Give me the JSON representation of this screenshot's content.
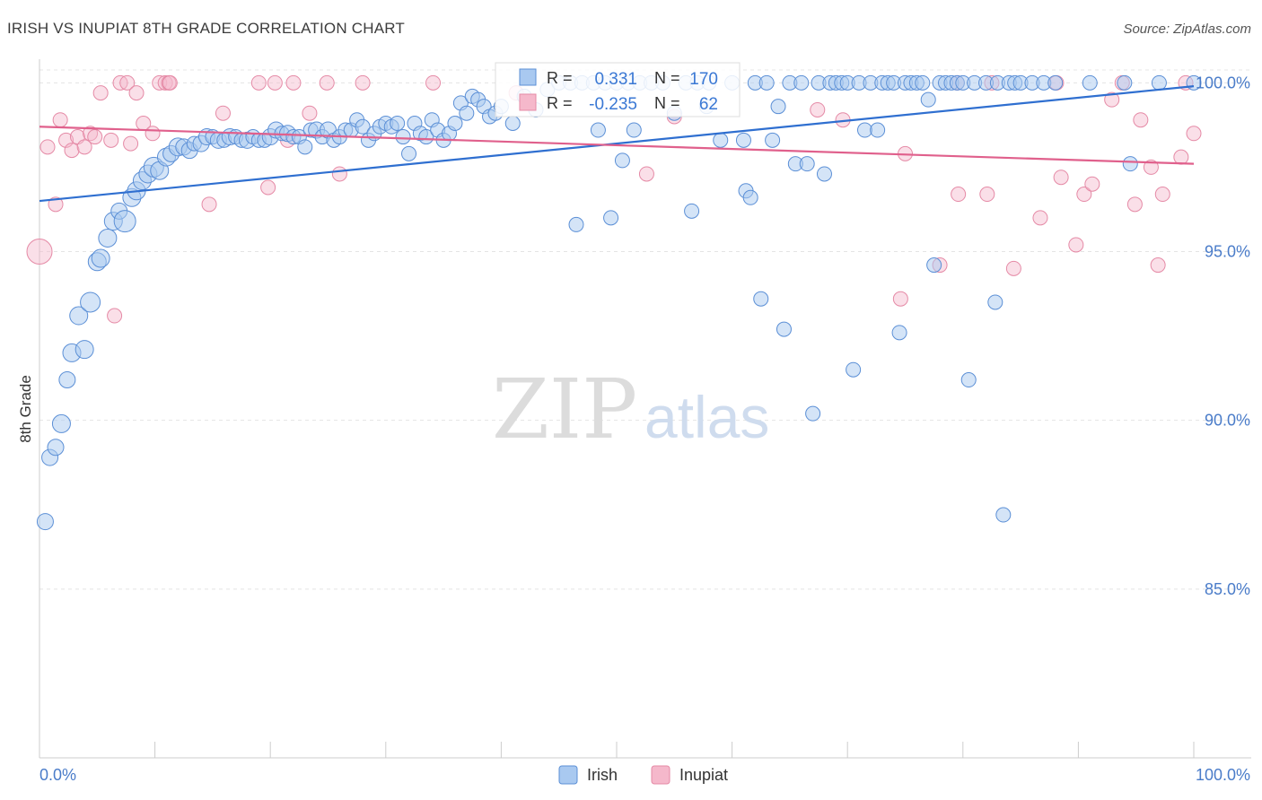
{
  "header": {
    "title": "IRISH VS INUPIAT 8TH GRADE CORRELATION CHART",
    "source": "Source: ZipAtlas.com"
  },
  "watermark": {
    "zip": "ZIP",
    "atlas": "atlas"
  },
  "stats_box": {
    "rows": [
      {
        "r_label": "R =",
        "r_value": "0.331",
        "n_label": "N =",
        "n_value": "170"
      },
      {
        "r_label": "R =",
        "r_value": "-0.235",
        "n_label": "N =",
        "n_value": "62"
      }
    ]
  },
  "legend": {
    "items": [
      {
        "label": "Irish",
        "color": "#a9c9f0"
      },
      {
        "label": "Inupiat",
        "color": "#f5b8cb"
      }
    ]
  },
  "chart_data": {
    "type": "scatter",
    "ylabel": "8th Grade",
    "xlim": [
      0,
      100
    ],
    "ylim": [
      80.0,
      100.7
    ],
    "x_tick_labels": [
      {
        "value": 0,
        "label": "0.0%"
      },
      {
        "value": 100,
        "label": "100.0%"
      }
    ],
    "y_tick_labels": [
      {
        "value": 100,
        "label": "100.0%"
      },
      {
        "value": 95,
        "label": "95.0%"
      },
      {
        "value": 90,
        "label": "90.0%"
      },
      {
        "value": 85,
        "label": "85.0%"
      }
    ],
    "grid": true,
    "legend_position": "bottom-center",
    "colors": {
      "irish_fill": "#a9c9f0",
      "irish_stroke": "#5b8fd6",
      "irish_line": "#2f6fd0",
      "inupiat_fill": "#f5b8cb",
      "inupiat_stroke": "#e58aa6",
      "inupiat_line": "#e0608c",
      "tick_text": "#4a7cc9"
    },
    "series": [
      {
        "name": "Irish",
        "trendline": {
          "x": [
            0,
            100
          ],
          "y": [
            96.5,
            99.9
          ]
        },
        "points": [
          [
            0.5,
            87.0,
            9
          ],
          [
            0.9,
            88.9,
            9
          ],
          [
            1.4,
            89.2,
            9
          ],
          [
            1.9,
            89.9,
            10
          ],
          [
            2.4,
            91.2,
            9
          ],
          [
            2.8,
            92.0,
            10
          ],
          [
            3.4,
            93.1,
            10
          ],
          [
            3.9,
            92.1,
            10
          ],
          [
            4.4,
            93.5,
            11
          ],
          [
            5.0,
            94.7,
            10
          ],
          [
            5.3,
            94.8,
            10
          ],
          [
            5.9,
            95.4,
            10
          ],
          [
            6.4,
            95.9,
            10
          ],
          [
            6.9,
            96.2,
            9
          ],
          [
            7.4,
            95.9,
            12
          ],
          [
            8.0,
            96.6,
            10
          ],
          [
            8.4,
            96.8,
            10
          ],
          [
            8.9,
            97.1,
            10
          ],
          [
            9.4,
            97.3,
            10
          ],
          [
            9.9,
            97.5,
            11
          ],
          [
            10.4,
            97.4,
            10
          ],
          [
            11.0,
            97.8,
            10
          ],
          [
            11.4,
            97.9,
            9
          ],
          [
            12.0,
            98.1,
            10
          ],
          [
            12.5,
            98.1,
            9
          ],
          [
            13.0,
            98.0,
            9
          ],
          [
            13.4,
            98.2,
            8
          ],
          [
            14.0,
            98.2,
            9
          ],
          [
            14.5,
            98.4,
            9
          ],
          [
            15.0,
            98.4,
            8
          ],
          [
            15.5,
            98.3,
            9
          ],
          [
            16.0,
            98.3,
            8
          ],
          [
            16.5,
            98.4,
            9
          ],
          [
            17.0,
            98.4,
            8
          ],
          [
            17.5,
            98.3,
            8
          ],
          [
            18.0,
            98.3,
            9
          ],
          [
            18.5,
            98.4,
            8
          ],
          [
            19.0,
            98.3,
            8
          ],
          [
            19.5,
            98.3,
            8
          ],
          [
            20.0,
            98.4,
            9
          ],
          [
            20.5,
            98.6,
            9
          ],
          [
            21.0,
            98.5,
            8
          ],
          [
            21.5,
            98.5,
            9
          ],
          [
            22.0,
            98.4,
            8
          ],
          [
            22.5,
            98.4,
            8
          ],
          [
            23.0,
            98.1,
            8
          ],
          [
            23.5,
            98.6,
            8
          ],
          [
            24.0,
            98.6,
            9
          ],
          [
            24.5,
            98.4,
            8
          ],
          [
            25.0,
            98.6,
            9
          ],
          [
            25.5,
            98.3,
            8
          ],
          [
            26.0,
            98.4,
            8
          ],
          [
            26.5,
            98.6,
            8
          ],
          [
            27.0,
            98.6,
            8
          ],
          [
            27.5,
            98.9,
            8
          ],
          [
            28.0,
            98.7,
            8
          ],
          [
            28.5,
            98.3,
            8
          ],
          [
            29.0,
            98.5,
            8
          ],
          [
            29.5,
            98.7,
            8
          ],
          [
            30.0,
            98.8,
            8
          ],
          [
            30.5,
            98.7,
            8
          ],
          [
            31.0,
            98.8,
            8
          ],
          [
            31.5,
            98.4,
            8
          ],
          [
            32.0,
            97.9,
            8
          ],
          [
            32.5,
            98.8,
            8
          ],
          [
            33.0,
            98.5,
            8
          ],
          [
            33.5,
            98.4,
            8
          ],
          [
            34.0,
            98.9,
            8
          ],
          [
            34.5,
            98.6,
            8
          ],
          [
            35.0,
            98.3,
            8
          ],
          [
            35.5,
            98.5,
            8
          ],
          [
            36.0,
            98.8,
            8
          ],
          [
            36.5,
            99.4,
            8
          ],
          [
            37.0,
            99.1,
            8
          ],
          [
            37.5,
            99.6,
            8
          ],
          [
            38.0,
            99.5,
            8
          ],
          [
            38.5,
            99.3,
            8
          ],
          [
            39.0,
            99.0,
            8
          ],
          [
            39.5,
            99.1,
            8
          ],
          [
            40.0,
            99.3,
            8
          ],
          [
            41.0,
            98.8,
            8
          ],
          [
            42.0,
            99.6,
            8
          ],
          [
            43.0,
            99.2,
            8
          ],
          [
            44.0,
            99.8,
            8
          ],
          [
            45.0,
            100.0,
            8
          ],
          [
            46.0,
            100.0,
            8
          ],
          [
            47.0,
            100.0,
            8
          ],
          [
            48.0,
            100.0,
            8
          ],
          [
            48.4,
            98.6,
            8
          ],
          [
            49.0,
            100.0,
            8
          ],
          [
            50.0,
            100.0,
            8
          ],
          [
            50.5,
            97.7,
            8
          ],
          [
            51.0,
            100.0,
            8
          ],
          [
            51.5,
            98.6,
            8
          ],
          [
            52.0,
            100.0,
            8
          ],
          [
            53.0,
            100.0,
            8
          ],
          [
            54.0,
            100.0,
            8
          ],
          [
            55.0,
            99.1,
            8
          ],
          [
            56.0,
            100.0,
            8
          ],
          [
            57.0,
            100.0,
            8
          ],
          [
            57.8,
            99.3,
            8
          ],
          [
            58.0,
            100.0,
            8
          ],
          [
            59.0,
            98.3,
            8
          ],
          [
            60.0,
            100.0,
            8
          ],
          [
            61.0,
            98.3,
            8
          ],
          [
            61.2,
            96.8,
            8
          ],
          [
            61.6,
            96.6,
            8
          ],
          [
            62.0,
            100.0,
            8
          ],
          [
            62.5,
            93.6,
            8
          ],
          [
            63.0,
            100.0,
            8
          ],
          [
            63.5,
            98.3,
            8
          ],
          [
            64.0,
            99.3,
            8
          ],
          [
            64.5,
            92.7,
            8
          ],
          [
            65.0,
            100.0,
            8
          ],
          [
            65.5,
            97.6,
            8
          ],
          [
            66.0,
            100.0,
            8
          ],
          [
            66.5,
            97.6,
            8
          ],
          [
            67.0,
            90.2,
            8
          ],
          [
            67.5,
            100.0,
            8
          ],
          [
            68.0,
            97.3,
            8
          ],
          [
            68.5,
            100.0,
            8
          ],
          [
            69.0,
            100.0,
            8
          ],
          [
            69.5,
            100.0,
            8
          ],
          [
            70.0,
            100.0,
            8
          ],
          [
            70.5,
            91.5,
            8
          ],
          [
            71.0,
            100.0,
            8
          ],
          [
            71.5,
            98.6,
            8
          ],
          [
            72.0,
            100.0,
            8
          ],
          [
            72.6,
            98.6,
            8
          ],
          [
            73.0,
            100.0,
            8
          ],
          [
            73.5,
            100.0,
            8
          ],
          [
            74.0,
            100.0,
            8
          ],
          [
            74.5,
            92.6,
            8
          ],
          [
            75.0,
            100.0,
            8
          ],
          [
            75.5,
            100.0,
            8
          ],
          [
            76.0,
            100.0,
            8
          ],
          [
            76.5,
            100.0,
            8
          ],
          [
            77.0,
            99.5,
            8
          ],
          [
            77.5,
            94.6,
            8
          ],
          [
            78.0,
            100.0,
            8
          ],
          [
            78.5,
            100.0,
            8
          ],
          [
            79.0,
            100.0,
            8
          ],
          [
            79.5,
            100.0,
            8
          ],
          [
            80.0,
            100.0,
            8
          ],
          [
            80.5,
            91.2,
            8
          ],
          [
            81.0,
            100.0,
            8
          ],
          [
            82.0,
            100.0,
            8
          ],
          [
            82.8,
            93.5,
            8
          ],
          [
            83.0,
            100.0,
            8
          ],
          [
            83.5,
            87.2,
            8
          ],
          [
            84.0,
            100.0,
            8
          ],
          [
            84.5,
            100.0,
            8
          ],
          [
            85.0,
            100.0,
            8
          ],
          [
            86.0,
            100.0,
            8
          ],
          [
            87.0,
            100.0,
            8
          ],
          [
            88.0,
            100.0,
            8
          ],
          [
            91.0,
            100.0,
            8
          ],
          [
            94.0,
            100.0,
            8
          ],
          [
            94.5,
            97.6,
            8
          ],
          [
            97.0,
            100.0,
            8
          ],
          [
            100.0,
            100.0,
            8
          ],
          [
            46.5,
            95.8,
            8
          ],
          [
            49.5,
            96.0,
            8
          ],
          [
            56.5,
            96.2,
            8
          ]
        ]
      },
      {
        "name": "Inupiat",
        "trendline": {
          "x": [
            0,
            100
          ],
          "y": [
            98.7,
            97.6
          ]
        },
        "points": [
          [
            0.0,
            95.0,
            14
          ],
          [
            0.7,
            98.1,
            8
          ],
          [
            1.4,
            96.4,
            8
          ],
          [
            1.8,
            98.9,
            8
          ],
          [
            2.3,
            98.3,
            8
          ],
          [
            2.8,
            98.0,
            8
          ],
          [
            3.3,
            98.4,
            8
          ],
          [
            3.9,
            98.1,
            8
          ],
          [
            4.4,
            98.5,
            8
          ],
          [
            4.8,
            98.4,
            8
          ],
          [
            5.3,
            99.7,
            8
          ],
          [
            6.2,
            98.3,
            8
          ],
          [
            6.5,
            93.1,
            8
          ],
          [
            7.0,
            100.0,
            8
          ],
          [
            7.6,
            100.0,
            8
          ],
          [
            7.9,
            98.2,
            8
          ],
          [
            8.4,
            99.7,
            8
          ],
          [
            9.0,
            98.8,
            8
          ],
          [
            9.8,
            98.5,
            8
          ],
          [
            10.4,
            100.0,
            8
          ],
          [
            10.9,
            100.0,
            8
          ],
          [
            11.2,
            100.0,
            8
          ],
          [
            11.3,
            100.0,
            8
          ],
          [
            14.7,
            96.4,
            8
          ],
          [
            15.9,
            99.1,
            8
          ],
          [
            19.0,
            100.0,
            8
          ],
          [
            19.8,
            96.9,
            8
          ],
          [
            20.4,
            100.0,
            8
          ],
          [
            21.5,
            98.3,
            8
          ],
          [
            22.0,
            100.0,
            8
          ],
          [
            23.4,
            99.1,
            8
          ],
          [
            24.9,
            100.0,
            8
          ],
          [
            26.0,
            97.3,
            8
          ],
          [
            28.0,
            100.0,
            8
          ],
          [
            34.1,
            100.0,
            8
          ],
          [
            41.3,
            99.7,
            8
          ],
          [
            52.6,
            97.3,
            8
          ],
          [
            55.0,
            99.0,
            8
          ],
          [
            67.4,
            99.2,
            8
          ],
          [
            69.6,
            98.9,
            8
          ],
          [
            74.6,
            93.6,
            8
          ],
          [
            75.0,
            97.9,
            8
          ],
          [
            78.0,
            94.6,
            8
          ],
          [
            79.5,
            100.0,
            8
          ],
          [
            79.6,
            96.7,
            8
          ],
          [
            82.1,
            96.7,
            8
          ],
          [
            82.5,
            100.0,
            8
          ],
          [
            84.4,
            94.5,
            8
          ],
          [
            86.7,
            96.0,
            8
          ],
          [
            88.1,
            100.0,
            8
          ],
          [
            88.5,
            97.2,
            8
          ],
          [
            89.8,
            95.2,
            8
          ],
          [
            90.5,
            96.7,
            8
          ],
          [
            91.2,
            97.0,
            8
          ],
          [
            92.9,
            99.5,
            8
          ],
          [
            93.8,
            100.0,
            8
          ],
          [
            94.9,
            96.4,
            8
          ],
          [
            95.4,
            98.9,
            8
          ],
          [
            96.3,
            97.5,
            8
          ],
          [
            96.9,
            94.6,
            8
          ],
          [
            97.3,
            96.7,
            8
          ],
          [
            98.9,
            97.8,
            8
          ],
          [
            99.3,
            100.0,
            8
          ],
          [
            100.0,
            98.5,
            8
          ]
        ]
      }
    ]
  }
}
